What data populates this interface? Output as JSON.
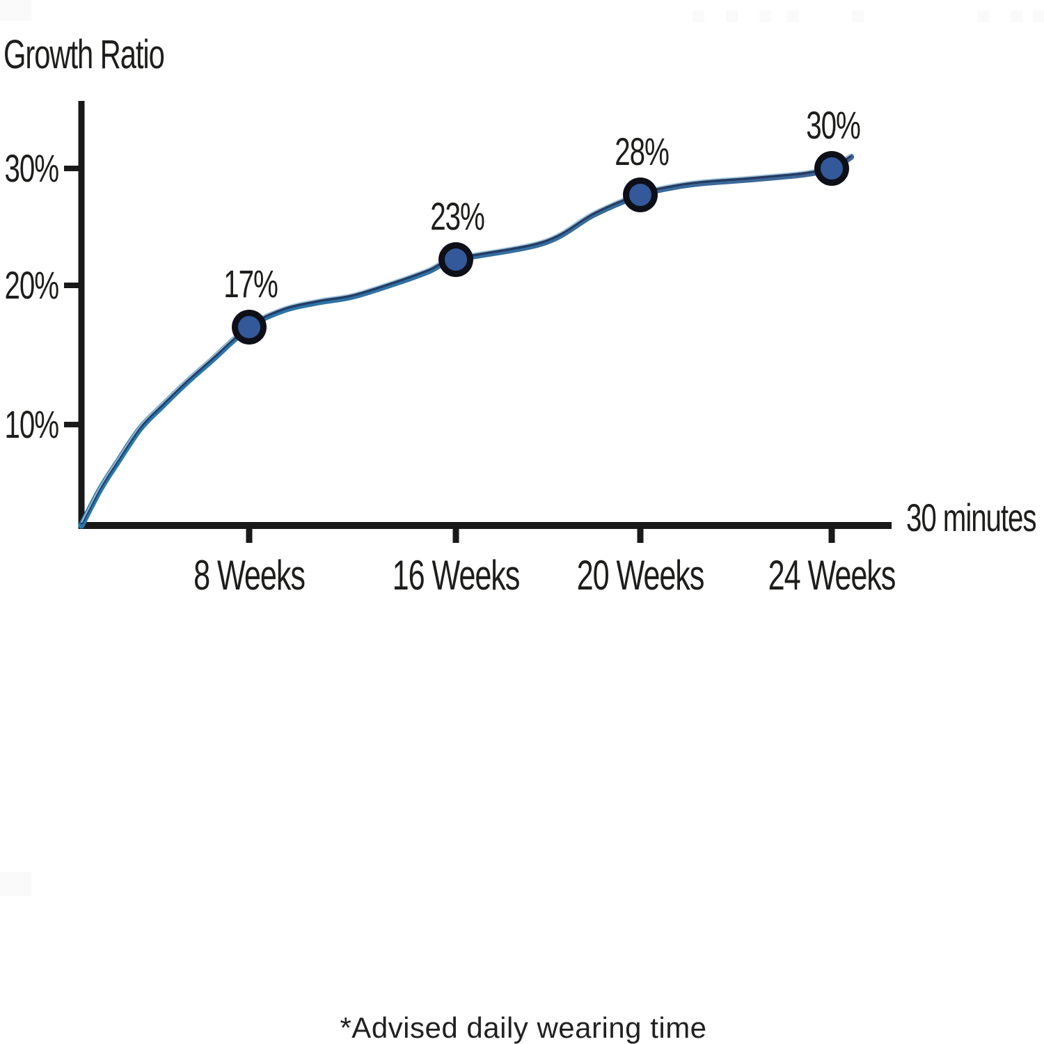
{
  "chart_data": {
    "type": "line",
    "ylabel": "Growth Ratio",
    "x_axis_end_label": "30 minutes",
    "footnote": "*Advised daily wearing time",
    "categories": [
      "8 Weeks",
      "16 Weeks",
      "20 Weeks",
      "24 Weeks"
    ],
    "x_weeks": [
      8,
      16,
      20,
      24
    ],
    "values": [
      17,
      23,
      28,
      30
    ],
    "point_labels": [
      "17%",
      "23%",
      "28%",
      "30%"
    ],
    "y_ticks": [
      {
        "value": 30,
        "label": "30%"
      },
      {
        "value": 20,
        "label": "20%"
      },
      {
        "value": 10,
        "label": "10%"
      }
    ],
    "ylim": [
      0,
      34
    ],
    "xlim_weeks": [
      0,
      25.3
    ],
    "grid": false,
    "legend": false,
    "curve_samples": [
      [
        0,
        0
      ],
      [
        0.9,
        3.6
      ],
      [
        1.7,
        6.2
      ],
      [
        2.8,
        9.6
      ],
      [
        3.9,
        11.4
      ],
      [
        5,
        13
      ],
      [
        6.2,
        14.6
      ],
      [
        8,
        17
      ],
      [
        9.3,
        18.2
      ],
      [
        10.7,
        18.8
      ],
      [
        12,
        19.2
      ],
      [
        13.6,
        20.2
      ],
      [
        14.9,
        21.6
      ],
      [
        16,
        23
      ],
      [
        17.9,
        24.3
      ],
      [
        19,
        26.5
      ],
      [
        20,
        28
      ],
      [
        20.7,
        28.6
      ],
      [
        21.3,
        28.9
      ],
      [
        22.2,
        29.15
      ],
      [
        23,
        29.4
      ],
      [
        23.5,
        29.6
      ],
      [
        24,
        30
      ],
      [
        24.8,
        30.9
      ]
    ]
  },
  "colors": {
    "background": "#ffffff",
    "text": "#1d1d1b",
    "axis": "#191919",
    "curve_teal": "#2579ad",
    "curve_steel": "#3f6695",
    "curve_navy": "#223358",
    "curve_highlight": "#b7d4e6",
    "marker_fill": "#33599a",
    "marker_ring": "#0f0f18",
    "watermark": "#fafafa"
  }
}
